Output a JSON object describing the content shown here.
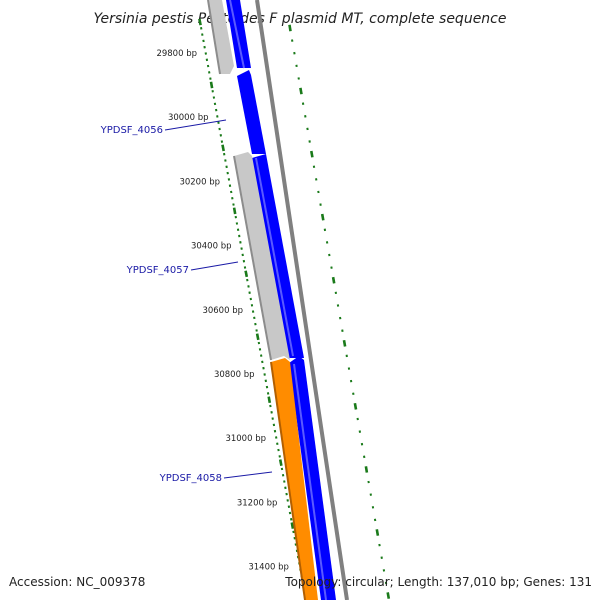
{
  "title": "Yersinia pestis Pestoides F plasmid MT, complete sequence",
  "footer": {
    "accession": "Accession: NC_009378",
    "topology": "Topology: circular; Length: 137,010 bp; Genes: 131"
  },
  "position_labels": [
    "29800 bp",
    "30000 bp",
    "30200 bp",
    "30400 bp",
    "30600 bp",
    "30800 bp",
    "31000 bp",
    "31200 bp",
    "31400 bp"
  ],
  "genes": [
    {
      "name": "YPDSF_4056",
      "color": "#c8c8c8"
    },
    {
      "name": "YPDSF_4057",
      "color": "#c8c8c8"
    },
    {
      "name": "YPDSF_4058",
      "color": "#ff8c00"
    }
  ],
  "colors": {
    "cds": "#0000ff",
    "gene_grey": "#c8c8c8",
    "gene_orange": "#ff8c00",
    "backbone": "#808080",
    "ticks": "#1a7a1a",
    "label_line": "#1a1aa6"
  }
}
